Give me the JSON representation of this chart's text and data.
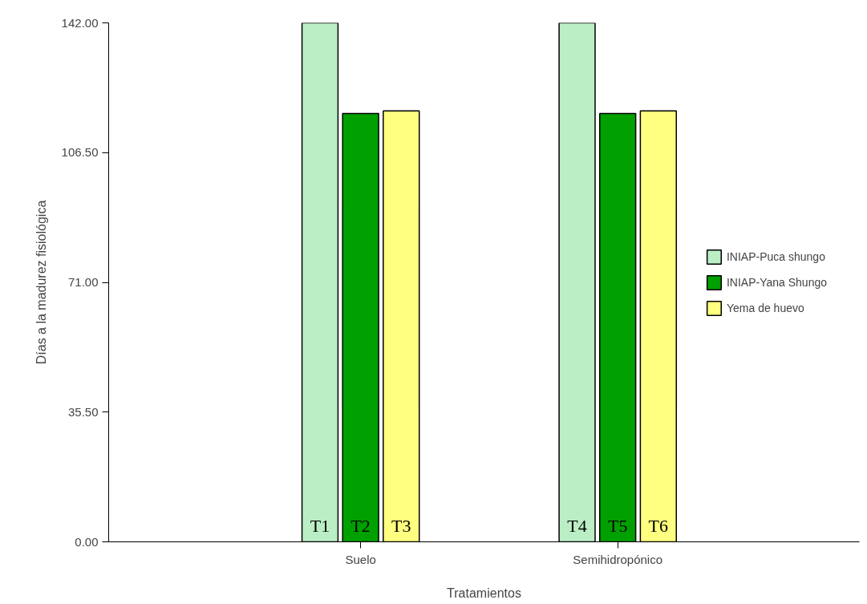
{
  "chart_data": {
    "type": "bar",
    "xlabel": "Tratamientos",
    "ylabel": "Días a la madurez fisiológica",
    "categories": [
      "Suelo",
      "Semihidropónico"
    ],
    "series": [
      {
        "name": "INIAP-Puca shungo",
        "color": "#bbeec4",
        "values": [
          142,
          142
        ],
        "value_labels": [
          "T1",
          "T4"
        ]
      },
      {
        "name": "INIAP-Yana Shungo",
        "color": "#00a000",
        "values": [
          117.2,
          117.2
        ],
        "value_labels": [
          "T2",
          "T5"
        ]
      },
      {
        "name": "Yema de huevo",
        "color": "#ffff80",
        "values": [
          117.9,
          117.9
        ],
        "value_labels": [
          "T3",
          "T6"
        ]
      }
    ],
    "ylim": [
      0,
      142
    ],
    "yticks": [
      {
        "value": 0,
        "label": "0.00"
      },
      {
        "value": 35.5,
        "label": "35.50"
      },
      {
        "value": 71,
        "label": "71.00"
      },
      {
        "value": 106.5,
        "label": "106.50"
      },
      {
        "value": 142,
        "label": "142.00"
      }
    ],
    "legend": "right",
    "grid": false
  }
}
